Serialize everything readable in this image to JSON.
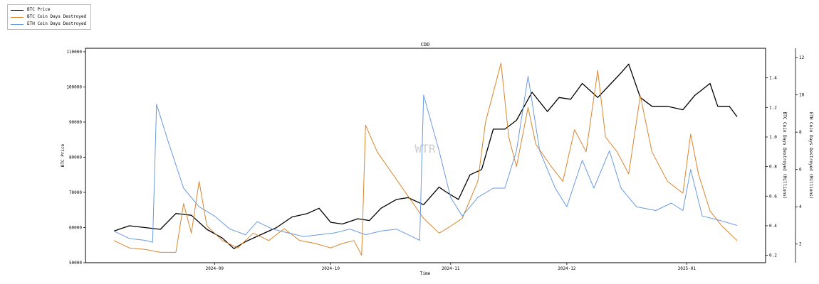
{
  "chart_data": {
    "type": "line",
    "title": "CDD",
    "xlabel": "Time",
    "ylabel_left": "BTC Price",
    "ylabel_right1": "BTC Coin Days Destroyed (Millions)",
    "ylabel_right2": "ETH Coin Days Destroyed (Millions)",
    "watermark": "WTR",
    "x_range": [
      "2024-08-06",
      "2025-01-14"
    ],
    "x_ticks": [
      {
        "date": "2024-09-01",
        "label": "2024-09"
      },
      {
        "date": "2024-10-01",
        "label": "2024-10"
      },
      {
        "date": "2024-11-01",
        "label": "2024-11"
      },
      {
        "date": "2024-12-01",
        "label": "2024-12"
      },
      {
        "date": "2025-01-01",
        "label": "2025-01"
      }
    ],
    "ylim_left": [
      50000,
      111000
    ],
    "yticks_left": [
      50000,
      60000,
      70000,
      80000,
      90000,
      100000,
      110000
    ],
    "ylim_right1": [
      0.15,
      1.6
    ],
    "yticks_right1": [
      0.2,
      0.4,
      0.6,
      0.8,
      1.0,
      1.2,
      1.4
    ],
    "yticks_right1_labels": [
      "0.2",
      "0.4",
      "0.6",
      "0.8",
      "1.0",
      "1.2",
      "1.4"
    ],
    "ylim_right2": [
      1.0,
      12.5
    ],
    "yticks_right2": [
      2,
      4,
      6,
      8,
      10,
      12
    ],
    "legend_position": "top-left, outside",
    "series": [
      {
        "name": "BTC Price",
        "axis": "left",
        "color": "#000000",
        "points": [
          [
            "2024-08-06",
            59000
          ],
          [
            "2024-08-10",
            60500
          ],
          [
            "2024-08-14",
            60000
          ],
          [
            "2024-08-18",
            59500
          ],
          [
            "2024-08-22",
            64000
          ],
          [
            "2024-08-26",
            63500
          ],
          [
            "2024-08-30",
            59500
          ],
          [
            "2024-09-03",
            57000
          ],
          [
            "2024-09-06",
            54000
          ],
          [
            "2024-09-09",
            56000
          ],
          [
            "2024-09-13",
            58000
          ],
          [
            "2024-09-17",
            60000
          ],
          [
            "2024-09-21",
            63000
          ],
          [
            "2024-09-25",
            64000
          ],
          [
            "2024-09-28",
            65500
          ],
          [
            "2024-10-01",
            61500
          ],
          [
            "2024-10-04",
            61000
          ],
          [
            "2024-10-08",
            62500
          ],
          [
            "2024-10-11",
            62000
          ],
          [
            "2024-10-14",
            65500
          ],
          [
            "2024-10-18",
            68000
          ],
          [
            "2024-10-21",
            68500
          ],
          [
            "2024-10-25",
            66500
          ],
          [
            "2024-10-29",
            71500
          ],
          [
            "2024-10-31",
            70000
          ],
          [
            "2024-11-03",
            68000
          ],
          [
            "2024-11-06",
            75000
          ],
          [
            "2024-11-09",
            76500
          ],
          [
            "2024-11-12",
            88000
          ],
          [
            "2024-11-15",
            88000
          ],
          [
            "2024-11-18",
            90500
          ],
          [
            "2024-11-22",
            98500
          ],
          [
            "2024-11-26",
            93000
          ],
          [
            "2024-11-29",
            97000
          ],
          [
            "2024-12-02",
            96500
          ],
          [
            "2024-12-05",
            101000
          ],
          [
            "2024-12-09",
            97000
          ],
          [
            "2024-12-12",
            100500
          ],
          [
            "2024-12-15",
            104000
          ],
          [
            "2024-12-17",
            106500
          ],
          [
            "2024-12-20",
            97000
          ],
          [
            "2024-12-23",
            94500
          ],
          [
            "2024-12-27",
            94500
          ],
          [
            "2024-12-31",
            93500
          ],
          [
            "2025-01-03",
            97500
          ],
          [
            "2025-01-07",
            101000
          ],
          [
            "2025-01-09",
            94500
          ],
          [
            "2025-01-12",
            94500
          ],
          [
            "2025-01-14",
            91500
          ]
        ]
      },
      {
        "name": "BTC Coin Days Destroyed",
        "axis": "right1",
        "color": "#d9852b",
        "points": [
          [
            "2024-08-06",
            0.3
          ],
          [
            "2024-08-10",
            0.25
          ],
          [
            "2024-08-14",
            0.24
          ],
          [
            "2024-08-18",
            0.22
          ],
          [
            "2024-08-22",
            0.22
          ],
          [
            "2024-08-24",
            0.55
          ],
          [
            "2024-08-26",
            0.35
          ],
          [
            "2024-08-28",
            0.7
          ],
          [
            "2024-08-30",
            0.4
          ],
          [
            "2024-09-03",
            0.3
          ],
          [
            "2024-09-07",
            0.25
          ],
          [
            "2024-09-11",
            0.35
          ],
          [
            "2024-09-15",
            0.3
          ],
          [
            "2024-09-19",
            0.38
          ],
          [
            "2024-09-23",
            0.3
          ],
          [
            "2024-09-27",
            0.28
          ],
          [
            "2024-10-01",
            0.25
          ],
          [
            "2024-10-04",
            0.28
          ],
          [
            "2024-10-07",
            0.3
          ],
          [
            "2024-10-09",
            0.2
          ],
          [
            "2024-10-10",
            1.08
          ],
          [
            "2024-10-13",
            0.9
          ],
          [
            "2024-10-17",
            0.75
          ],
          [
            "2024-10-21",
            0.6
          ],
          [
            "2024-10-25",
            0.45
          ],
          [
            "2024-10-29",
            0.35
          ],
          [
            "2024-10-31",
            0.38
          ],
          [
            "2024-11-04",
            0.45
          ],
          [
            "2024-11-08",
            0.7
          ],
          [
            "2024-11-10",
            1.1
          ],
          [
            "2024-11-12",
            1.3
          ],
          [
            "2024-11-14",
            1.5
          ],
          [
            "2024-11-16",
            1.0
          ],
          [
            "2024-11-18",
            0.8
          ],
          [
            "2024-11-21",
            1.2
          ],
          [
            "2024-11-23",
            0.95
          ],
          [
            "2024-11-27",
            0.8
          ],
          [
            "2024-11-30",
            0.7
          ],
          [
            "2024-12-03",
            1.05
          ],
          [
            "2024-12-06",
            0.9
          ],
          [
            "2024-12-09",
            1.45
          ],
          [
            "2024-12-11",
            1.0
          ],
          [
            "2024-12-14",
            0.9
          ],
          [
            "2024-12-17",
            0.75
          ],
          [
            "2024-12-20",
            1.28
          ],
          [
            "2024-12-23",
            0.9
          ],
          [
            "2024-12-27",
            0.7
          ],
          [
            "2024-12-31",
            0.62
          ],
          [
            "2025-01-02",
            1.02
          ],
          [
            "2025-01-04",
            0.75
          ],
          [
            "2025-01-07",
            0.5
          ],
          [
            "2025-01-10",
            0.4
          ],
          [
            "2025-01-14",
            0.3
          ]
        ]
      },
      {
        "name": "ETH Coin Days Destroyed",
        "axis": "right2",
        "color": "#6a9ae0",
        "points": [
          [
            "2024-08-06",
            2.7
          ],
          [
            "2024-08-10",
            2.3
          ],
          [
            "2024-08-14",
            2.2
          ],
          [
            "2024-08-16",
            2.1
          ],
          [
            "2024-08-17",
            9.5
          ],
          [
            "2024-08-20",
            7.5
          ],
          [
            "2024-08-24",
            5.0
          ],
          [
            "2024-08-28",
            4.0
          ],
          [
            "2024-09-01",
            3.5
          ],
          [
            "2024-09-05",
            2.8
          ],
          [
            "2024-09-09",
            2.5
          ],
          [
            "2024-09-12",
            3.2
          ],
          [
            "2024-09-16",
            2.8
          ],
          [
            "2024-09-20",
            2.6
          ],
          [
            "2024-09-24",
            2.4
          ],
          [
            "2024-09-28",
            2.5
          ],
          [
            "2024-10-02",
            2.6
          ],
          [
            "2024-10-06",
            2.8
          ],
          [
            "2024-10-10",
            2.5
          ],
          [
            "2024-10-14",
            2.7
          ],
          [
            "2024-10-18",
            2.8
          ],
          [
            "2024-10-22",
            2.4
          ],
          [
            "2024-10-24",
            2.2
          ],
          [
            "2024-10-25",
            10.0
          ],
          [
            "2024-10-29",
            7.0
          ],
          [
            "2024-11-01",
            4.5
          ],
          [
            "2024-11-04",
            3.5
          ],
          [
            "2024-11-08",
            4.5
          ],
          [
            "2024-11-12",
            5.0
          ],
          [
            "2024-11-15",
            5.0
          ],
          [
            "2024-11-18",
            7.0
          ],
          [
            "2024-11-21",
            11.0
          ],
          [
            "2024-11-24",
            7.0
          ],
          [
            "2024-11-28",
            5.0
          ],
          [
            "2024-12-01",
            4.0
          ],
          [
            "2024-12-05",
            6.5
          ],
          [
            "2024-12-08",
            5.0
          ],
          [
            "2024-12-12",
            7.0
          ],
          [
            "2024-12-15",
            5.0
          ],
          [
            "2024-12-19",
            4.0
          ],
          [
            "2024-12-24",
            3.8
          ],
          [
            "2024-12-28",
            4.2
          ],
          [
            "2024-12-31",
            3.8
          ],
          [
            "2025-01-02",
            6.0
          ],
          [
            "2025-01-05",
            3.5
          ],
          [
            "2025-01-09",
            3.3
          ],
          [
            "2025-01-14",
            3.0
          ]
        ]
      }
    ]
  }
}
